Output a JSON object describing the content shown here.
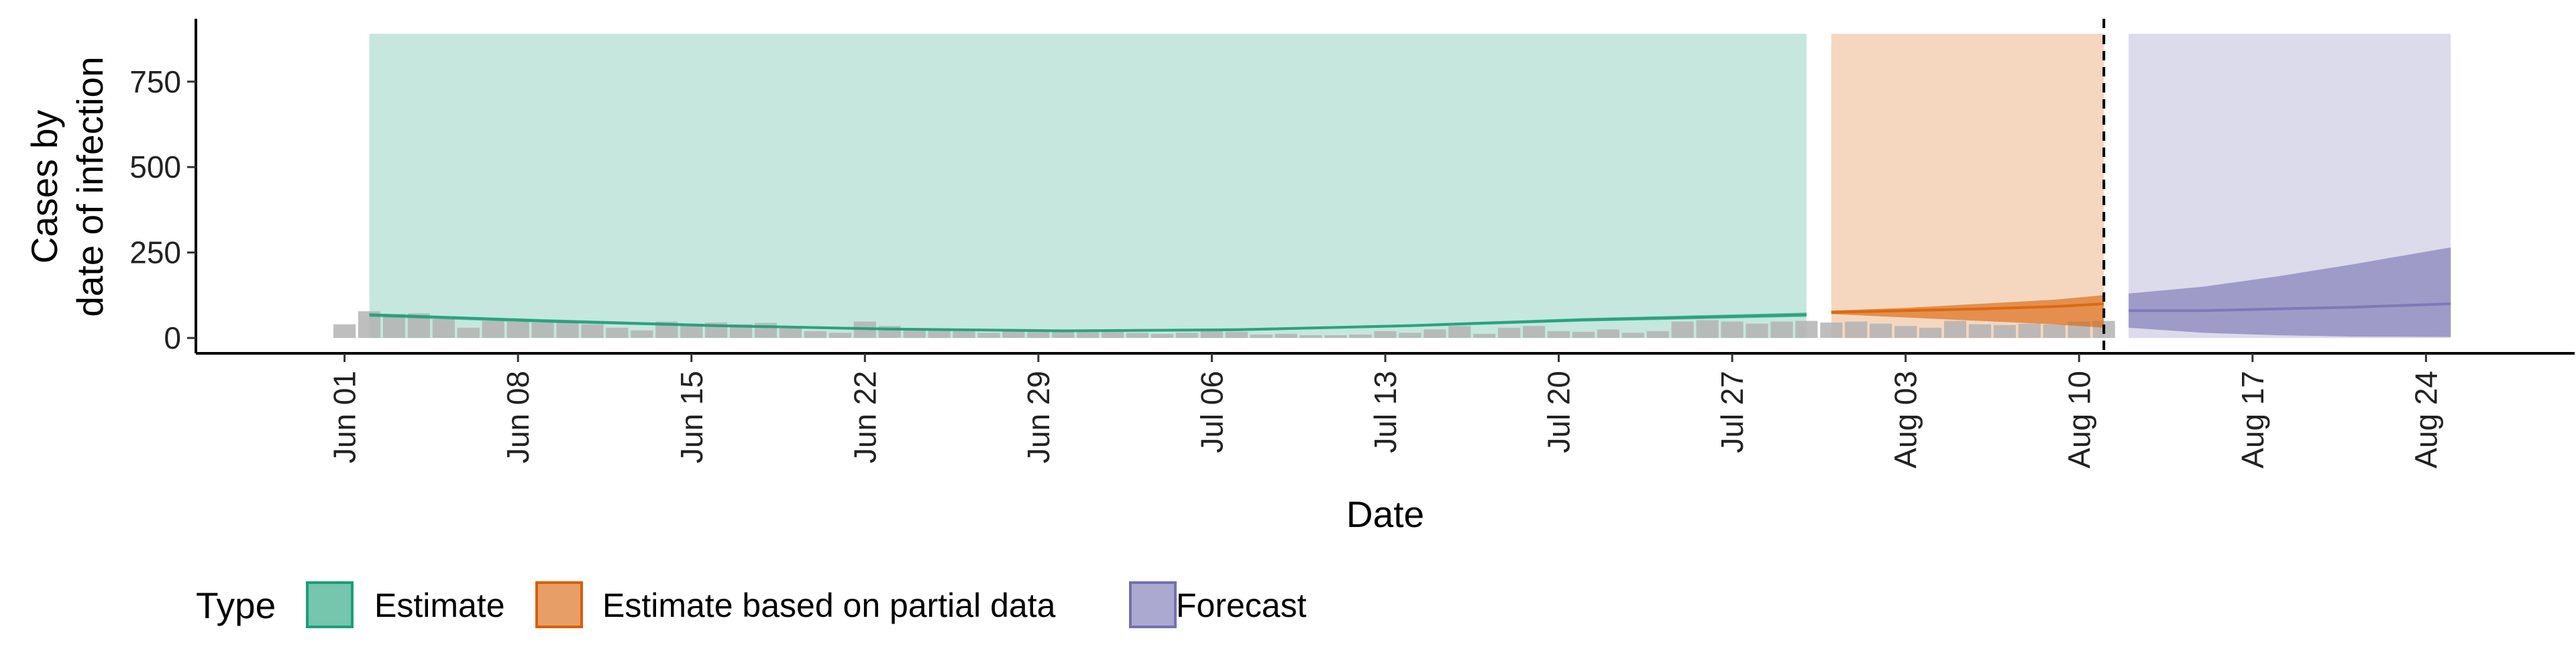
{
  "chart_data": {
    "type": "area",
    "xlabel": "Date",
    "ylabel_lines": [
      "Cases by",
      "date of infection"
    ],
    "x_ticks": [
      "Jun 01",
      "Jun 08",
      "Jun 15",
      "Jun 22",
      "Jun 29",
      "Jul 06",
      "Jul 13",
      "Jul 20",
      "Jul 27",
      "Aug 03",
      "Aug 10",
      "Aug 17",
      "Aug 24"
    ],
    "x_tick_dates": [
      "2020-06-01",
      "2020-06-08",
      "2020-06-15",
      "2020-06-22",
      "2020-06-29",
      "2020-07-06",
      "2020-07-13",
      "2020-07-20",
      "2020-07-27",
      "2020-08-03",
      "2020-08-10",
      "2020-08-17",
      "2020-08-24"
    ],
    "xlim": [
      "2020-05-26",
      "2020-08-30"
    ],
    "y_ticks": [
      0,
      250,
      500,
      750
    ],
    "ylim": [
      -45,
      930
    ],
    "grid": false,
    "reference_line_date": "2020-08-11",
    "legend": {
      "title": "Type",
      "position": "bottom-left",
      "entries": [
        {
          "label": "Estimate",
          "fill": "#1b9e77"
        },
        {
          "label": "Estimate based on partial data",
          "fill": "#d95f02"
        },
        {
          "label": "Forecast",
          "fill": "#7570b3"
        }
      ]
    },
    "series": [
      {
        "name": "Estimate",
        "color": "#1b9e77",
        "dates": [
          "2020-06-02",
          "2020-06-09",
          "2020-06-16",
          "2020-06-23",
          "2020-06-30",
          "2020-07-07",
          "2020-07-14",
          "2020-07-21",
          "2020-07-30"
        ],
        "outer_lower": [
          0,
          0,
          0,
          0,
          0,
          0,
          0,
          0,
          0
        ],
        "outer_upper": [
          890,
          890,
          890,
          890,
          890,
          890,
          890,
          890,
          890
        ],
        "inner_lower": [
          62,
          45,
          32,
          22,
          17,
          20,
          32,
          48,
          62
        ],
        "inner_upper": [
          72,
          55,
          40,
          30,
          24,
          28,
          40,
          58,
          74
        ],
        "median": [
          68,
          50,
          36,
          26,
          21,
          24,
          36,
          53,
          68
        ]
      },
      {
        "name": "Estimate based on partial data",
        "color": "#d95f02",
        "dates": [
          "2020-07-31",
          "2020-08-03",
          "2020-08-06",
          "2020-08-09",
          "2020-08-11"
        ],
        "outer_lower": [
          0,
          0,
          0,
          0,
          0
        ],
        "outer_upper": [
          890,
          890,
          890,
          890,
          890
        ],
        "inner_lower": [
          70,
          60,
          50,
          40,
          30
        ],
        "inner_upper": [
          80,
          88,
          100,
          112,
          125
        ],
        "median": [
          75,
          80,
          85,
          92,
          100
        ]
      },
      {
        "name": "Forecast",
        "color": "#7570b3",
        "dates": [
          "2020-08-12",
          "2020-08-15",
          "2020-08-18",
          "2020-08-21",
          "2020-08-25"
        ],
        "outer_lower": [
          0,
          0,
          0,
          0,
          0
        ],
        "outer_upper": [
          890,
          890,
          890,
          890,
          890
        ],
        "inner_lower": [
          30,
          15,
          8,
          4,
          3
        ],
        "inner_upper": [
          130,
          150,
          180,
          215,
          265
        ],
        "median": [
          80,
          80,
          85,
          90,
          100
        ]
      }
    ],
    "observed_bars": {
      "color": "#b3b3b3",
      "start_date": "2020-06-01",
      "values": [
        40,
        78,
        70,
        72,
        55,
        30,
        50,
        48,
        45,
        50,
        40,
        30,
        22,
        48,
        42,
        45,
        40,
        44,
        28,
        20,
        15,
        48,
        35,
        28,
        28,
        20,
        15,
        25,
        20,
        22,
        18,
        20,
        15,
        12,
        15,
        20,
        18,
        10,
        12,
        8,
        8,
        10,
        20,
        15,
        25,
        35,
        12,
        30,
        35,
        20,
        18,
        25,
        15,
        20,
        48,
        52,
        48,
        42,
        48,
        50,
        45,
        48,
        42,
        35,
        30,
        50,
        40,
        38,
        42,
        40,
        48,
        50
      ]
    }
  }
}
